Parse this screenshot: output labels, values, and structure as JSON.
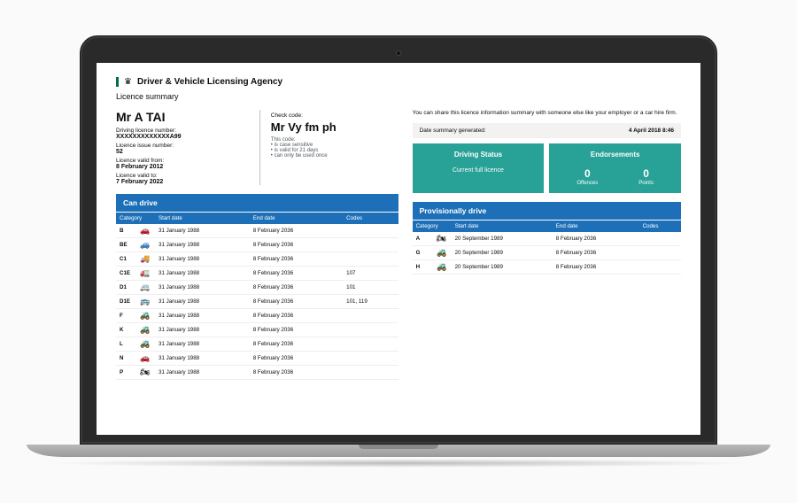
{
  "header": {
    "agency": "Driver & Vehicle Licensing Agency",
    "subtitle": "Licence summary"
  },
  "person": {
    "name": "Mr A TAI",
    "licence_number_label": "Driving licence number:",
    "licence_number": "XXXXXXXXXXXXXA99",
    "issue_label": "Licence issue number:",
    "issue_number": "52",
    "valid_from_label": "Licence valid from:",
    "valid_from": "8 February 2012",
    "valid_to_label": "Licence valid to:",
    "valid_to": "7 February 2022"
  },
  "check": {
    "label": "Check code:",
    "code": "Mr Vy fm ph",
    "note_intro": "This code:",
    "note1": "• is case sensitive",
    "note2": "• is valid for 21 days",
    "note3": "• can only be used once"
  },
  "share": {
    "text": "You can share this licence information summary with someone else like your employer or a car hire firm."
  },
  "generated": {
    "label": "Date summary generated:",
    "value": "4 April 2018   8:46"
  },
  "status_card": {
    "title": "Driving Status",
    "main": "Current full licence"
  },
  "endorse_card": {
    "title": "Endorsements",
    "offences_n": "0",
    "offences_l": "Offences",
    "points_n": "0",
    "points_l": "Points"
  },
  "can_drive": {
    "title": "Can drive",
    "cols": {
      "category": "Category",
      "start": "Start date",
      "end": "End date",
      "codes": "Codes"
    },
    "rows": [
      {
        "cat": "B",
        "icon": "🚗",
        "start": "31 January 1988",
        "end": "8 February 2036",
        "codes": ""
      },
      {
        "cat": "BE",
        "icon": "🚙",
        "start": "31 January 1988",
        "end": "8 February 2036",
        "codes": ""
      },
      {
        "cat": "C1",
        "icon": "🚚",
        "start": "31 January 1988",
        "end": "8 February 2036",
        "codes": ""
      },
      {
        "cat": "C1E",
        "icon": "🚛",
        "start": "31 January 1988",
        "end": "8 February 2036",
        "codes": "107"
      },
      {
        "cat": "D1",
        "icon": "🚐",
        "start": "31 January 1988",
        "end": "8 February 2036",
        "codes": "101"
      },
      {
        "cat": "D1E",
        "icon": "🚌",
        "start": "31 January 1988",
        "end": "8 February 2036",
        "codes": "101, 119"
      },
      {
        "cat": "F",
        "icon": "🚜",
        "start": "31 January 1988",
        "end": "8 February 2036",
        "codes": ""
      },
      {
        "cat": "K",
        "icon": "🚜",
        "start": "31 January 1988",
        "end": "8 February 2036",
        "codes": ""
      },
      {
        "cat": "L",
        "icon": "🚜",
        "start": "31 January 1988",
        "end": "8 February 2036",
        "codes": ""
      },
      {
        "cat": "N",
        "icon": "🚗",
        "start": "31 January 1988",
        "end": "8 February 2036",
        "codes": ""
      },
      {
        "cat": "P",
        "icon": "🏍",
        "start": "31 January 1988",
        "end": "8 February 2036",
        "codes": ""
      }
    ]
  },
  "prov_drive": {
    "title": "Provisionally drive",
    "cols": {
      "category": "Category",
      "start": "Start date",
      "end": "End date",
      "codes": "Codes"
    },
    "rows": [
      {
        "cat": "A",
        "icon": "🏍",
        "start": "20 September 1989",
        "end": "8 February 2036",
        "codes": ""
      },
      {
        "cat": "G",
        "icon": "🚜",
        "start": "20 September 1989",
        "end": "8 February 2036",
        "codes": ""
      },
      {
        "cat": "H",
        "icon": "🚜",
        "start": "20 September 1989",
        "end": "8 February 2036",
        "codes": ""
      }
    ]
  },
  "colors": {
    "brand_green": "#00703c",
    "blue": "#1d70b8",
    "teal": "#28a197",
    "grey_bg": "#f3f2f1"
  }
}
